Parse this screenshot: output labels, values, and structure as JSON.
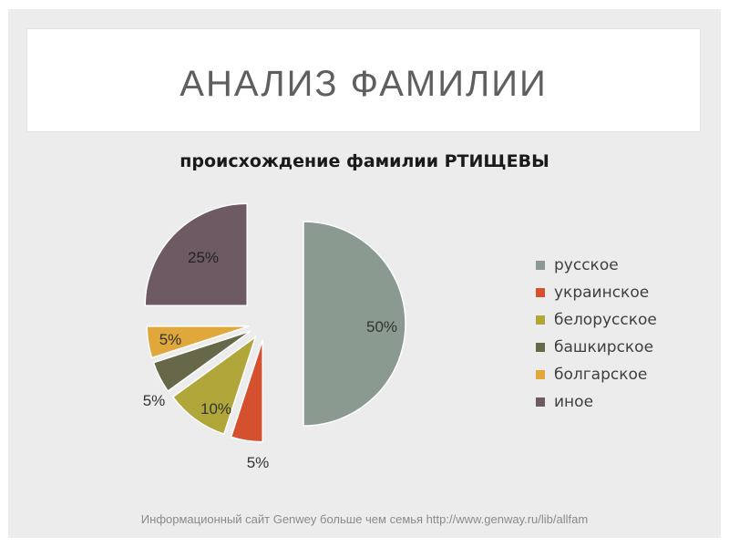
{
  "slide": {
    "title": "АНАЛИЗ ФАМИЛИИ",
    "footer": "Информационный сайт Genwey больше чем семья  http://www.genway.ru/lib/allfam"
  },
  "chart_data": {
    "type": "pie",
    "title": "происхождение фамилии РТИЩЕВЫ",
    "exploded": true,
    "legend_position": "right",
    "slices": [
      {
        "label": "русское",
        "value": 50,
        "display": "50%",
        "color": "#8b9a91"
      },
      {
        "label": "украинское",
        "value": 5,
        "display": "5%",
        "color": "#d4502f"
      },
      {
        "label": "белорусское",
        "value": 10,
        "display": "10%",
        "color": "#b0a63a"
      },
      {
        "label": "башкирское",
        "value": 5,
        "display": "5%",
        "color": "#67684a"
      },
      {
        "label": "болгарское",
        "value": 5,
        "display": "5%",
        "color": "#e0a83a"
      },
      {
        "label": "иное",
        "value": 25,
        "display": "25%",
        "color": "#6d5a63"
      }
    ]
  }
}
